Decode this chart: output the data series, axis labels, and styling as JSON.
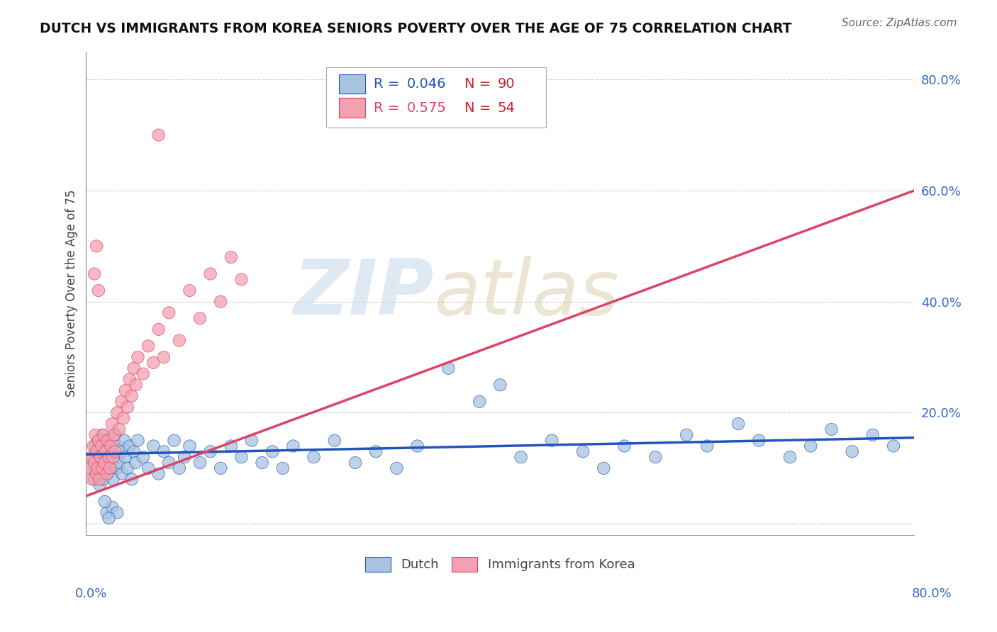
{
  "title": "DUTCH VS IMMIGRANTS FROM KOREA SENIORS POVERTY OVER THE AGE OF 75 CORRELATION CHART",
  "source": "Source: ZipAtlas.com",
  "ylabel": "Seniors Poverty Over the Age of 75",
  "xlim": [
    0,
    0.8
  ],
  "ylim": [
    -0.02,
    0.85
  ],
  "yticks": [
    0.0,
    0.2,
    0.4,
    0.6,
    0.8
  ],
  "ytick_labels": [
    "",
    "20.0%",
    "40.0%",
    "60.0%",
    "80.0%"
  ],
  "dutch_R": 0.046,
  "dutch_N": 90,
  "korea_R": 0.575,
  "korea_N": 54,
  "dutch_color": "#a8c4e0",
  "korea_color": "#f4a0b0",
  "dutch_line_color": "#2255bb",
  "korea_line_color": "#dd4466",
  "legend_R_color_dutch": "#2255bb",
  "legend_R_color_korea": "#dd4466",
  "legend_N_color": "#cc2222",
  "background_color": "#ffffff",
  "grid_color": "#cccccc",
  "title_color": "#111111",
  "dutch_x": [
    0.005,
    0.007,
    0.008,
    0.009,
    0.01,
    0.01,
    0.011,
    0.012,
    0.013,
    0.014,
    0.015,
    0.015,
    0.016,
    0.016,
    0.017,
    0.018,
    0.019,
    0.02,
    0.02,
    0.021,
    0.022,
    0.023,
    0.024,
    0.025,
    0.026,
    0.027,
    0.028,
    0.03,
    0.031,
    0.032,
    0.034,
    0.035,
    0.037,
    0.038,
    0.04,
    0.042,
    0.044,
    0.046,
    0.048,
    0.05,
    0.055,
    0.06,
    0.065,
    0.07,
    0.075,
    0.08,
    0.085,
    0.09,
    0.095,
    0.1,
    0.11,
    0.12,
    0.13,
    0.14,
    0.15,
    0.16,
    0.17,
    0.18,
    0.19,
    0.2,
    0.22,
    0.24,
    0.26,
    0.28,
    0.3,
    0.32,
    0.35,
    0.38,
    0.4,
    0.42,
    0.45,
    0.48,
    0.5,
    0.52,
    0.55,
    0.58,
    0.6,
    0.63,
    0.65,
    0.68,
    0.7,
    0.72,
    0.74,
    0.76,
    0.78,
    0.02,
    0.025,
    0.03,
    0.018,
    0.022
  ],
  "dutch_y": [
    0.1,
    0.12,
    0.08,
    0.14,
    0.13,
    0.09,
    0.11,
    0.15,
    0.07,
    0.12,
    0.1,
    0.14,
    0.11,
    0.16,
    0.08,
    0.13,
    0.1,
    0.12,
    0.15,
    0.09,
    0.11,
    0.14,
    0.1,
    0.13,
    0.08,
    0.12,
    0.16,
    0.1,
    0.14,
    0.11,
    0.13,
    0.09,
    0.15,
    0.12,
    0.1,
    0.14,
    0.08,
    0.13,
    0.11,
    0.15,
    0.12,
    0.1,
    0.14,
    0.09,
    0.13,
    0.11,
    0.15,
    0.1,
    0.12,
    0.14,
    0.11,
    0.13,
    0.1,
    0.14,
    0.12,
    0.15,
    0.11,
    0.13,
    0.1,
    0.14,
    0.12,
    0.15,
    0.11,
    0.13,
    0.1,
    0.14,
    0.28,
    0.22,
    0.25,
    0.12,
    0.15,
    0.13,
    0.1,
    0.14,
    0.12,
    0.16,
    0.14,
    0.18,
    0.15,
    0.12,
    0.14,
    0.17,
    0.13,
    0.16,
    0.14,
    0.02,
    0.03,
    0.02,
    0.04,
    0.01
  ],
  "korea_x": [
    0.003,
    0.005,
    0.006,
    0.007,
    0.008,
    0.009,
    0.01,
    0.01,
    0.011,
    0.012,
    0.013,
    0.014,
    0.015,
    0.016,
    0.017,
    0.018,
    0.019,
    0.02,
    0.021,
    0.022,
    0.023,
    0.024,
    0.025,
    0.026,
    0.027,
    0.028,
    0.03,
    0.032,
    0.034,
    0.036,
    0.038,
    0.04,
    0.042,
    0.044,
    0.046,
    0.048,
    0.05,
    0.055,
    0.06,
    0.065,
    0.07,
    0.075,
    0.08,
    0.09,
    0.1,
    0.11,
    0.12,
    0.13,
    0.14,
    0.15,
    0.008,
    0.01,
    0.012,
    0.07
  ],
  "korea_y": [
    0.1,
    0.12,
    0.08,
    0.14,
    0.11,
    0.16,
    0.09,
    0.13,
    0.1,
    0.15,
    0.08,
    0.12,
    0.14,
    0.1,
    0.16,
    0.11,
    0.13,
    0.09,
    0.15,
    0.12,
    0.1,
    0.14,
    0.18,
    0.12,
    0.16,
    0.13,
    0.2,
    0.17,
    0.22,
    0.19,
    0.24,
    0.21,
    0.26,
    0.23,
    0.28,
    0.25,
    0.3,
    0.27,
    0.32,
    0.29,
    0.35,
    0.3,
    0.38,
    0.33,
    0.42,
    0.37,
    0.45,
    0.4,
    0.48,
    0.44,
    0.45,
    0.5,
    0.42,
    0.7
  ]
}
